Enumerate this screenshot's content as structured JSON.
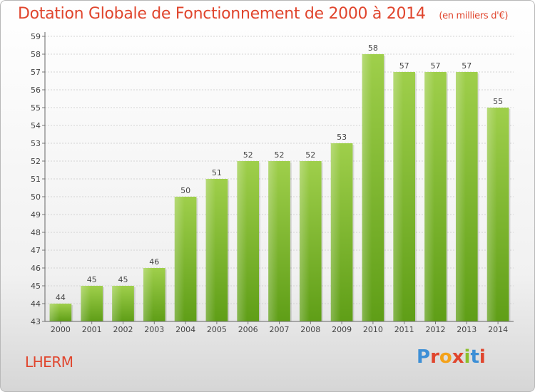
{
  "header": {
    "title": "Dotation Globale de Fonctionnement de 2000 à 2014",
    "unit": "(en milliers d'€)"
  },
  "footer": {
    "commune": "LHERM",
    "brand": "Proxiti"
  },
  "colors": {
    "title": "#e0452d",
    "bar_light": "#9fcf4b",
    "bar_dark": "#5f9e17",
    "brand_letters": [
      "#3d8fd6",
      "#e0452d",
      "#f4a21a",
      "#e0452d",
      "#8bbf2b",
      "#3d8fd6",
      "#e0452d"
    ]
  },
  "chart_data": {
    "type": "bar",
    "title": "Dotation Globale de Fonctionnement de 2000 à 2014",
    "subtitle": "(en milliers d'€)",
    "categories": [
      "2000",
      "2001",
      "2002",
      "2003",
      "2004",
      "2005",
      "2006",
      "2007",
      "2008",
      "2009",
      "2010",
      "2011",
      "2012",
      "2013",
      "2014"
    ],
    "values": [
      44,
      45,
      45,
      46,
      50,
      51,
      52,
      52,
      52,
      53,
      58,
      57,
      57,
      57,
      55
    ],
    "ylim": [
      43,
      59
    ],
    "yticks": [
      43,
      44,
      45,
      46,
      47,
      48,
      49,
      50,
      51,
      52,
      53,
      54,
      55,
      56,
      57,
      58,
      59
    ],
    "xlabel": "",
    "ylabel": "",
    "grid": true,
    "legend": "none"
  }
}
